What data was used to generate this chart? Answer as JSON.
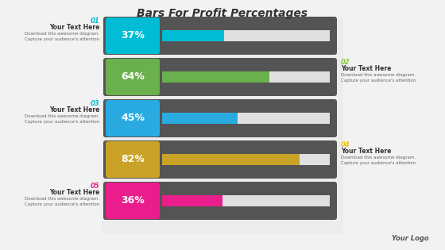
{
  "title": "Bars For Profit Percentages",
  "background_color": "#f2f2f2",
  "panel_color": "#e8e8e8",
  "bar_bg_color": "#545454",
  "bars": [
    {
      "number": "01",
      "percent": 37,
      "label": "37%",
      "color": "#00bcd4",
      "number_color": "#00bcd4",
      "side": "left"
    },
    {
      "number": "02",
      "percent": 64,
      "label": "64%",
      "color": "#6ab04c",
      "number_color": "#8dc63f",
      "side": "right"
    },
    {
      "number": "03",
      "percent": 45,
      "label": "45%",
      "color": "#29abe2",
      "number_color": "#00bcd4",
      "side": "left"
    },
    {
      "number": "04",
      "percent": 82,
      "label": "82%",
      "color": "#c9a227",
      "number_color": "#f0c419",
      "side": "right"
    },
    {
      "number": "05",
      "percent": 36,
      "label": "36%",
      "color": "#e91e8c",
      "number_color": "#e91e8c",
      "side": "left"
    }
  ],
  "bar_remainder_color": "#e0e0e0",
  "text_label": "Your Text Here",
  "sub_text1": "Download this awesome diagram.",
  "sub_text2": "Capture your audience's attention",
  "your_logo": "Your Logo"
}
